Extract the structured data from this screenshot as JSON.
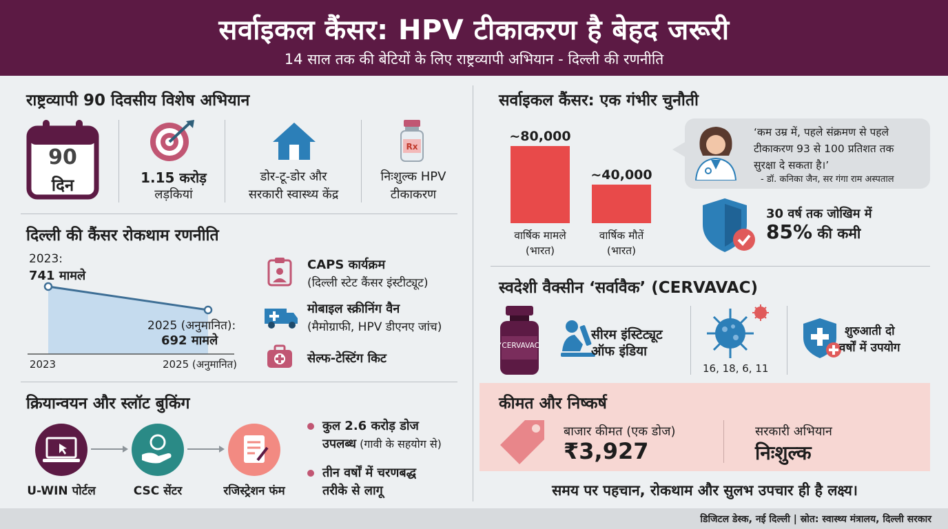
{
  "header": {
    "title": "सर्वाइकल कैंसर: HPV टीकाकरण है बेहद जरूरी",
    "subtitle": "14 साल तक की बेटियों के लिए राष्ट्रव्यापी अभियान - दिल्ली की रणनीति"
  },
  "campaign": {
    "title": "राष्ट्रव्यापी 90 दिवसीय विशेष अभियान",
    "calendar_number": "90",
    "calendar_unit": "दिन",
    "girls_count": "1.15 करोड़",
    "girls_label": "लड़कियां",
    "delivery_line1": "डोर-टू-डोर और",
    "delivery_line2": "सरकारी स्वास्थ्य केंद्र",
    "free_line1": "निःशुल्क HPV",
    "free_line2": "टीकाकरण",
    "icons": [
      "calendar-icon",
      "target-icon",
      "house-icon",
      "vaccine-vial-icon"
    ]
  },
  "delhi": {
    "title": "दिल्ली की कैंसर रोकथाम रणनीति",
    "start_label_year": "2023:",
    "start_label_value": "741 मामले",
    "end_label_year": "2025 (अनुमानित):",
    "end_label_value": "692 मामले",
    "items": [
      {
        "icon": "clipboard-doctor-icon",
        "line1": "CAPS कार्यक्रम",
        "line2": "(दिल्ली स्टेट कैंसर इंस्टीट्यूट)"
      },
      {
        "icon": "ambulance-van-icon",
        "line1": "मोबाइल स्क्रीनिंग वैन",
        "line2": "(मैमोग्राफी, HPV डीएनए जांच)"
      },
      {
        "icon": "medical-kit-icon",
        "line1": "सेल्फ-टेस्टिंग किट",
        "line2": ""
      }
    ]
  },
  "booking": {
    "title": "क्रियान्वयन और स्लॉट बुकिंग",
    "steps": [
      "U-WIN पोर्टल",
      "CSC सेंटर",
      "रजिस्ट्रेशन फंम"
    ],
    "bullet1_line1": "कुल 2.6 करोड़ डोज",
    "bullet1_line2a": "उपलब्ध",
    "bullet1_line2b": " (गावी के सहयोग से)",
    "bullet2_line1": "तीन वर्षों में चरणबद्ध",
    "bullet2_line2": "तरीके से लागू"
  },
  "challenge": {
    "title": "सर्वाइकल कैंसर: एक गंभीर चुनौती",
    "quote_line1": "‘कम उम्र में, पहले संक्रमण से पहले",
    "quote_line2": "टीकाकरण 93 से 100 प्रतिशत तक",
    "quote_line3": "सुरक्षा दे सकता है।’",
    "quote_author": "- डॉ. कनिका जैन, सर गंगा राम अस्पताल",
    "risk_line1": "30 वर्ष तक जोखिम में",
    "risk_value": "85%",
    "risk_suffix": " की कमी"
  },
  "cervavac": {
    "title": "स्वदेशी वैक्सीन ‘सर्वावैक’ (CERVAVAC)",
    "vial_label": "‘CERVAVAC",
    "maker_line1": "सीरम इंस्टिट्यूट",
    "maker_line2": "ऑफ इंडिया",
    "strains": "16, 18, 6, 11",
    "use_line1": "शुरुआती दो",
    "use_line2": "वर्षों में उपयोग"
  },
  "price": {
    "title": "कीमत और निष्कर्ष",
    "market_label": "बाजार कीमत (एक डोज)",
    "market_value": "₹3,927",
    "govt_label": "सरकारी अभियान",
    "govt_value": "निःशुल्क",
    "conclusion": "समय पर पहचान, रोकथाम और सुलभ उपचार ही है लक्ष्य।"
  },
  "footer": {
    "source": "डिजिटल डेस्क, नई दिल्ली | स्रोत: स्वास्थ्य मंत्रालय, दिल्ली सरकार"
  },
  "colors": {
    "header": "#5c1a44",
    "bar": "#e84a4a",
    "area": "#c5dbee",
    "line": "#3d6e95",
    "accent_blue": "#2c7fb8",
    "pink": "#c15673",
    "price_bg": "#f7d7d3"
  },
  "chart_data": [
    {
      "type": "bar",
      "categories": [
        "वार्षिक मामले (भारत)",
        "वार्षिक मौतें (भारत)"
      ],
      "values": [
        80000,
        40000
      ],
      "value_labels": [
        "~80,000",
        "~40,000"
      ],
      "category_lines": [
        [
          "वार्षिक मामले",
          "(भारत)"
        ],
        [
          "वार्षिक मौतें",
          "(भारत)"
        ]
      ],
      "title": "",
      "xlabel": "",
      "ylabel": "",
      "ylim": [
        0,
        80000
      ],
      "grid": false
    },
    {
      "type": "area",
      "x": [
        "2023",
        "2025 (अनुमानित)"
      ],
      "values": [
        741,
        692
      ],
      "ylim": [
        500,
        760
      ],
      "title": "",
      "xlabel": "",
      "ylabel": "",
      "grid": false
    }
  ]
}
